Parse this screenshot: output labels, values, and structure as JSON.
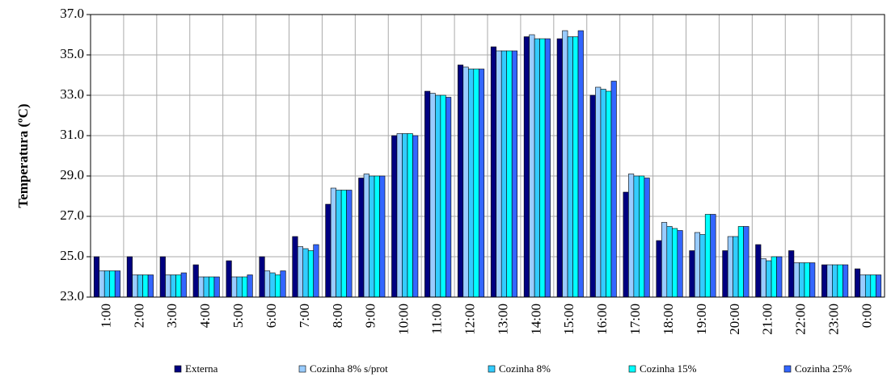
{
  "chart_data": {
    "type": "bar",
    "y_label": "Temperatura (ºC)",
    "categories": [
      "1:00",
      "2:00",
      "3:00",
      "4:00",
      "5:00",
      "6:00",
      "7:00",
      "8:00",
      "9:00",
      "10:00",
      "11:00",
      "12:00",
      "13:00",
      "14:00",
      "15:00",
      "16:00",
      "17:00",
      "18:00",
      "19:00",
      "20:00",
      "21:00",
      "22:00",
      "23:00",
      "0:00"
    ],
    "series": [
      {
        "name": "Externa",
        "color": "#000080",
        "values": [
          25.0,
          25.0,
          25.0,
          24.6,
          24.8,
          25.0,
          26.0,
          27.6,
          28.9,
          31.0,
          33.2,
          34.5,
          35.4,
          35.9,
          35.8,
          33.0,
          28.2,
          25.8,
          25.3,
          25.3,
          25.6,
          25.3,
          24.6,
          24.4
        ]
      },
      {
        "name": "Cozinha 8% s/prot",
        "color": "#99ccff",
        "values": [
          24.3,
          24.1,
          24.1,
          24.0,
          24.0,
          24.3,
          25.5,
          28.4,
          29.1,
          31.1,
          33.1,
          34.4,
          35.2,
          36.0,
          36.2,
          33.4,
          29.1,
          26.7,
          26.2,
          26.0,
          24.9,
          24.7,
          24.6,
          24.1
        ]
      },
      {
        "name": "Cozinha 8%",
        "color": "#33ccff",
        "values": [
          24.3,
          24.1,
          24.1,
          24.0,
          24.0,
          24.2,
          25.4,
          28.3,
          29.0,
          31.1,
          33.0,
          34.3,
          35.2,
          35.8,
          35.9,
          33.3,
          29.0,
          26.5,
          26.1,
          26.0,
          24.8,
          24.7,
          24.6,
          24.1
        ]
      },
      {
        "name": "Cozinha 15%",
        "color": "#00ffff",
        "values": [
          24.3,
          24.1,
          24.1,
          24.0,
          24.0,
          24.1,
          25.3,
          28.3,
          29.0,
          31.1,
          33.0,
          34.3,
          35.2,
          35.8,
          35.9,
          33.2,
          29.0,
          26.4,
          27.1,
          26.5,
          25.0,
          24.7,
          24.6,
          24.1
        ]
      },
      {
        "name": "Cozinha 25%",
        "color": "#3366ff",
        "values": [
          24.3,
          24.1,
          24.2,
          24.0,
          24.1,
          24.3,
          25.6,
          28.3,
          29.0,
          31.0,
          32.9,
          34.3,
          35.2,
          35.8,
          36.2,
          33.7,
          28.9,
          26.3,
          27.1,
          26.5,
          25.0,
          24.7,
          24.6,
          24.1
        ]
      }
    ],
    "ylim": [
      23,
      37
    ],
    "yticks": [
      {
        "value": 23,
        "label": "23.0"
      },
      {
        "value": 25,
        "label": "25.0"
      },
      {
        "value": 27,
        "label": "27.0"
      },
      {
        "value": 29,
        "label": "29.0"
      },
      {
        "value": 31,
        "label": "31.0"
      },
      {
        "value": 33,
        "label": "33.0"
      },
      {
        "value": 35,
        "label": "35.0"
      },
      {
        "value": 37,
        "label": "37.0"
      }
    ],
    "grid": true
  }
}
